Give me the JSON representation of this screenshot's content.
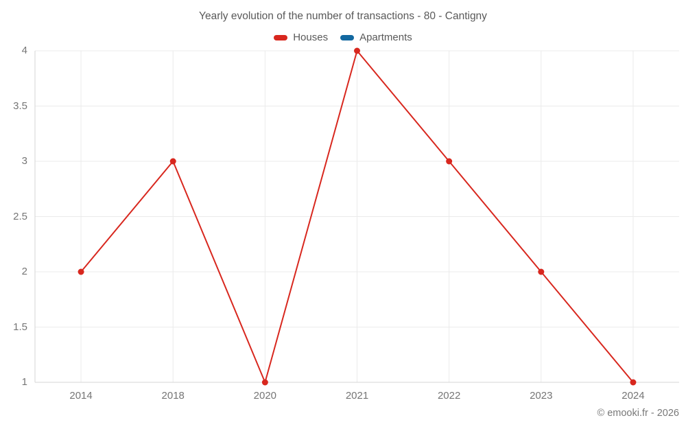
{
  "chart_data": {
    "type": "line",
    "title": "Yearly evolution of the number of transactions - 80 - Cantigny",
    "categories": [
      "2014",
      "2018",
      "2020",
      "2021",
      "2022",
      "2023",
      "2024"
    ],
    "series": [
      {
        "name": "Houses",
        "color": "#d8271e",
        "values": [
          2,
          3,
          1,
          4,
          3,
          2,
          1
        ]
      },
      {
        "name": "Apartments",
        "color": "#1368a0",
        "values": []
      }
    ],
    "y_ticks": [
      1,
      1.5,
      2,
      2.5,
      3,
      3.5,
      4
    ],
    "ylim": [
      1,
      4
    ],
    "xlabel": "",
    "ylabel": "",
    "grid": {
      "horizontal": true,
      "vertical": true
    },
    "legend_position": "top",
    "marker_radius": 4.5,
    "line_width": 2
  },
  "colors": {
    "grid_line": "#ebebeb",
    "axis_line": "#d6d6d6",
    "title_text": "#595959",
    "tick_text": "#757575",
    "footer_text": "#787878",
    "background": "#ffffff"
  },
  "footer": {
    "credit": "© emooki.fr - 2026"
  }
}
